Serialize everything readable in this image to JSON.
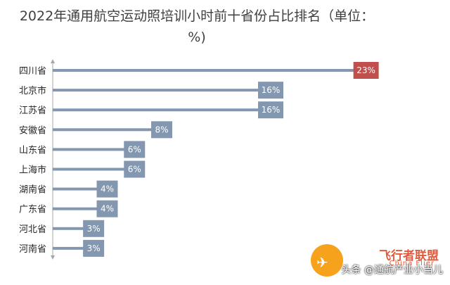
{
  "chart_data": {
    "type": "bar",
    "orientation": "horizontal",
    "title_lines": [
      "2022年通用航空运动照培训小时前十省份占比排名（单位：",
      "%)"
    ],
    "categories": [
      "四川省",
      "北京市",
      "江苏省",
      "安徽省",
      "山东省",
      "上海市",
      "湖南省",
      "广东省",
      "河北省",
      "河南省"
    ],
    "values": [
      23,
      16,
      16,
      8,
      6,
      6,
      4,
      4,
      3,
      3
    ],
    "data_labels": [
      "23%",
      "16%",
      "16%",
      "8%",
      "6%",
      "6%",
      "4%",
      "4%",
      "3%",
      "3%"
    ],
    "highlight_index": 0,
    "colors": {
      "bar": "#8497b0",
      "label_box": "#8497b0",
      "highlight_box": "#c0504d",
      "axis": "#a6a6a6"
    },
    "xlim": [
      0,
      24
    ],
    "grid": false,
    "legend": "none"
  },
  "watermark": {
    "brand": "飞行者联盟",
    "brand_en": "China Flier",
    "text": "头条 @通航产业小当儿"
  }
}
